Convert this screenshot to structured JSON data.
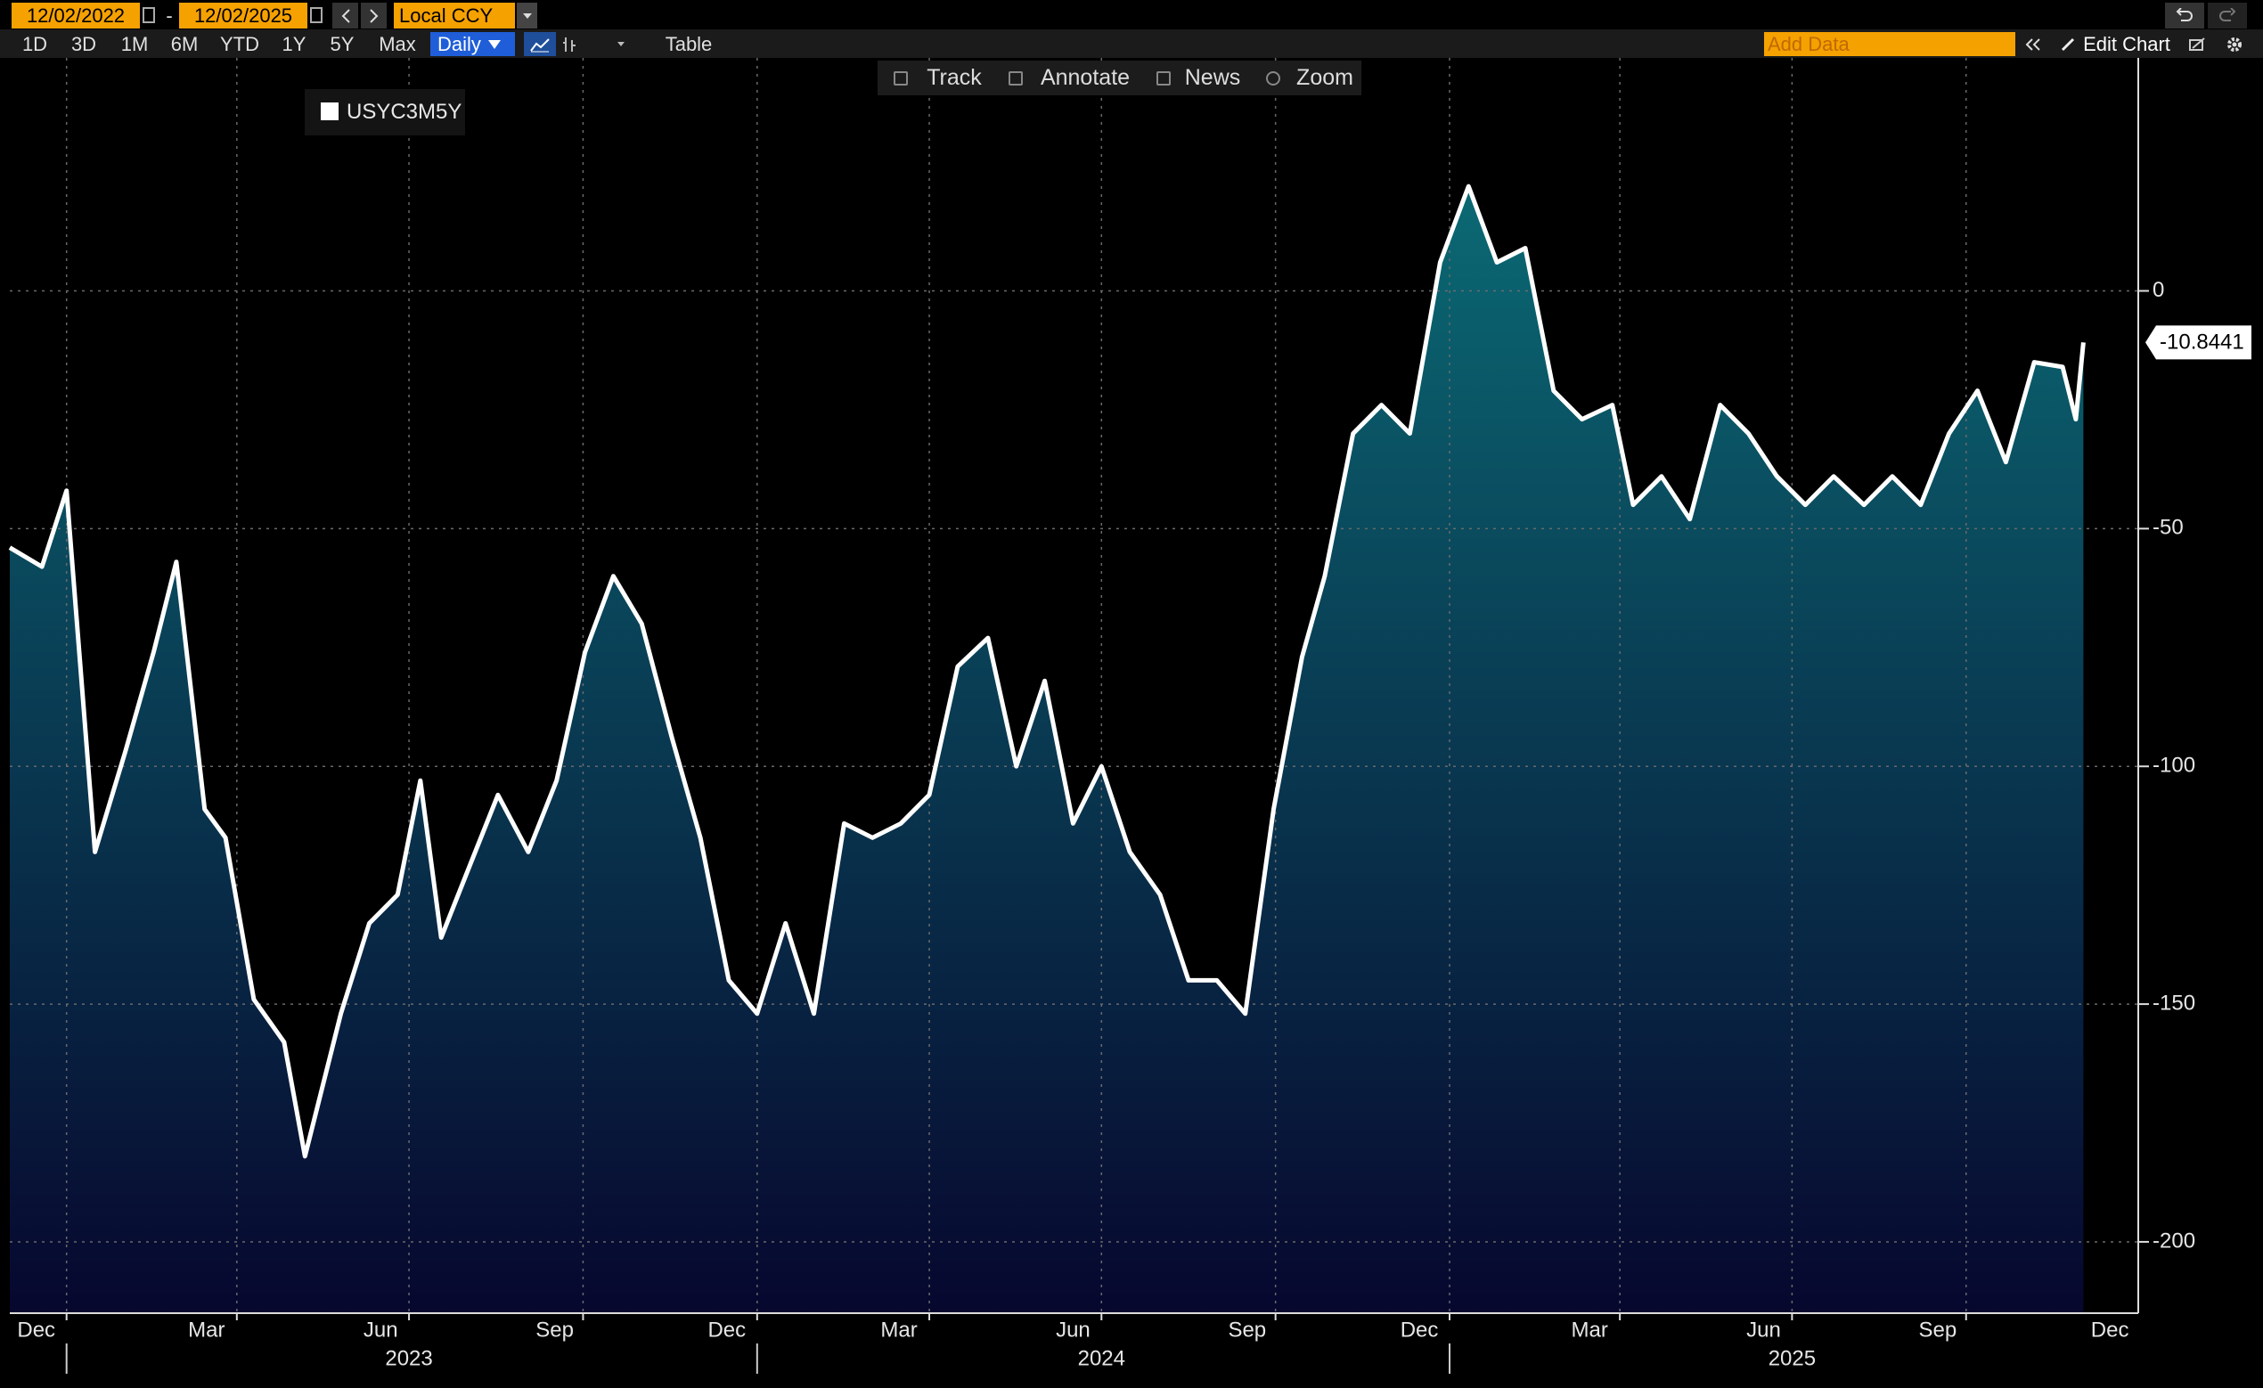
{
  "ui": {
    "start_date": "12/02/2022",
    "date_separator": "-",
    "end_date": "12/02/2025",
    "currency": "Local CCY",
    "periods": [
      "1D",
      "3D",
      "1M",
      "6M",
      "YTD",
      "1Y",
      "5Y",
      "Max"
    ],
    "frequency": "Daily",
    "table": "Table",
    "add_data": "Add Data",
    "edit_chart": "Edit Chart",
    "tools": [
      "Track",
      "Annotate",
      "News",
      "Zoom"
    ]
  },
  "chart_data": {
    "type": "area",
    "x": [
      "2022-12-02",
      "2022-12-19",
      "2023-01-01",
      "2023-01-16",
      "2023-02-01",
      "2023-02-16",
      "2023-02-28",
      "2023-03-15",
      "2023-03-26",
      "2023-04-10",
      "2023-04-26",
      "2023-05-07",
      "2023-05-26",
      "2023-06-10",
      "2023-06-25",
      "2023-07-07",
      "2023-07-18",
      "2023-08-02",
      "2023-08-17",
      "2023-09-02",
      "2023-09-17",
      "2023-10-02",
      "2023-10-17",
      "2023-11-01",
      "2023-11-17",
      "2023-12-02",
      "2023-12-17",
      "2024-01-01",
      "2024-01-16",
      "2024-01-31",
      "2024-02-16",
      "2024-03-02",
      "2024-03-17",
      "2024-04-01",
      "2024-04-16",
      "2024-05-02",
      "2024-05-17",
      "2024-06-01",
      "2024-06-16",
      "2024-07-01",
      "2024-07-16",
      "2024-08-01",
      "2024-08-16",
      "2024-08-31",
      "2024-09-15",
      "2024-09-30",
      "2024-10-15",
      "2024-10-27",
      "2024-11-11",
      "2024-11-26",
      "2024-12-11",
      "2024-12-27",
      "2025-01-11",
      "2025-01-26",
      "2025-02-10",
      "2025-02-25",
      "2025-03-12",
      "2025-03-28",
      "2025-04-08",
      "2025-04-23",
      "2025-05-08",
      "2025-05-24",
      "2025-06-08",
      "2025-06-23",
      "2025-07-08",
      "2025-07-23",
      "2025-08-08",
      "2025-08-23",
      "2025-09-07",
      "2025-09-22",
      "2025-10-07",
      "2025-10-22",
      "2025-11-06",
      "2025-11-21",
      "2025-11-28",
      "2025-12-02"
    ],
    "series": [
      {
        "name": "USYC3M5Y",
        "color": "#ffffff",
        "values": [
          -54,
          -58,
          -42,
          -118,
          -97,
          -76,
          -57,
          -109,
          -115,
          -149,
          -158,
          -182,
          -152,
          -133,
          -127,
          -103,
          -136,
          -121,
          -106,
          -118,
          -103,
          -76,
          -60,
          -70,
          -94,
          -115,
          -145,
          -152,
          -133,
          -152,
          -112,
          -115,
          -112,
          -106,
          -79,
          -73,
          -100,
          -82,
          -112,
          -100,
          -118,
          -127,
          -145,
          -145,
          -152,
          -109,
          -77,
          -60,
          -30,
          -24,
          -30,
          6,
          22,
          6,
          9,
          -21,
          -27,
          -24,
          -45,
          -39,
          -48,
          -24,
          -30,
          -39,
          -45,
          -39,
          -45,
          -39,
          -45,
          -30,
          -21,
          -36,
          -15,
          -16,
          -27,
          -10.8441
        ]
      }
    ],
    "xlim": [
      "2022-12-02",
      "2025-12-31"
    ],
    "xticks": [
      {
        "value": "2022-12-16",
        "label": "Dec"
      },
      {
        "value": "2023-03-16",
        "label": "Mar"
      },
      {
        "value": "2023-06-16",
        "label": "Jun"
      },
      {
        "value": "2023-09-16",
        "label": "Sep"
      },
      {
        "value": "2023-12-16",
        "label": "Dec"
      },
      {
        "value": "2024-03-16",
        "label": "Mar"
      },
      {
        "value": "2024-06-16",
        "label": "Jun"
      },
      {
        "value": "2024-09-16",
        "label": "Sep"
      },
      {
        "value": "2024-12-16",
        "label": "Dec"
      },
      {
        "value": "2025-03-16",
        "label": "Mar"
      },
      {
        "value": "2025-06-16",
        "label": "Jun"
      },
      {
        "value": "2025-09-16",
        "label": "Sep"
      },
      {
        "value": "2025-12-16",
        "label": "Dec"
      }
    ],
    "xgrid": [
      "2023-01-01",
      "2023-04-01",
      "2023-07-01",
      "2023-10-01",
      "2024-01-01",
      "2024-04-01",
      "2024-07-01",
      "2024-10-01",
      "2025-01-01",
      "2025-04-01",
      "2025-07-01",
      "2025-10-01"
    ],
    "years": [
      {
        "value": "2023-07-01",
        "label": "2023"
      },
      {
        "value": "2024-07-01",
        "label": "2024"
      },
      {
        "value": "2025-07-01",
        "label": "2025"
      }
    ],
    "ylim": [
      -215,
      49
    ],
    "yticks": [
      0,
      -50,
      -100,
      -150,
      -200
    ],
    "grid": true,
    "area_colors": [
      "#0b6e77",
      "#07072e"
    ]
  }
}
